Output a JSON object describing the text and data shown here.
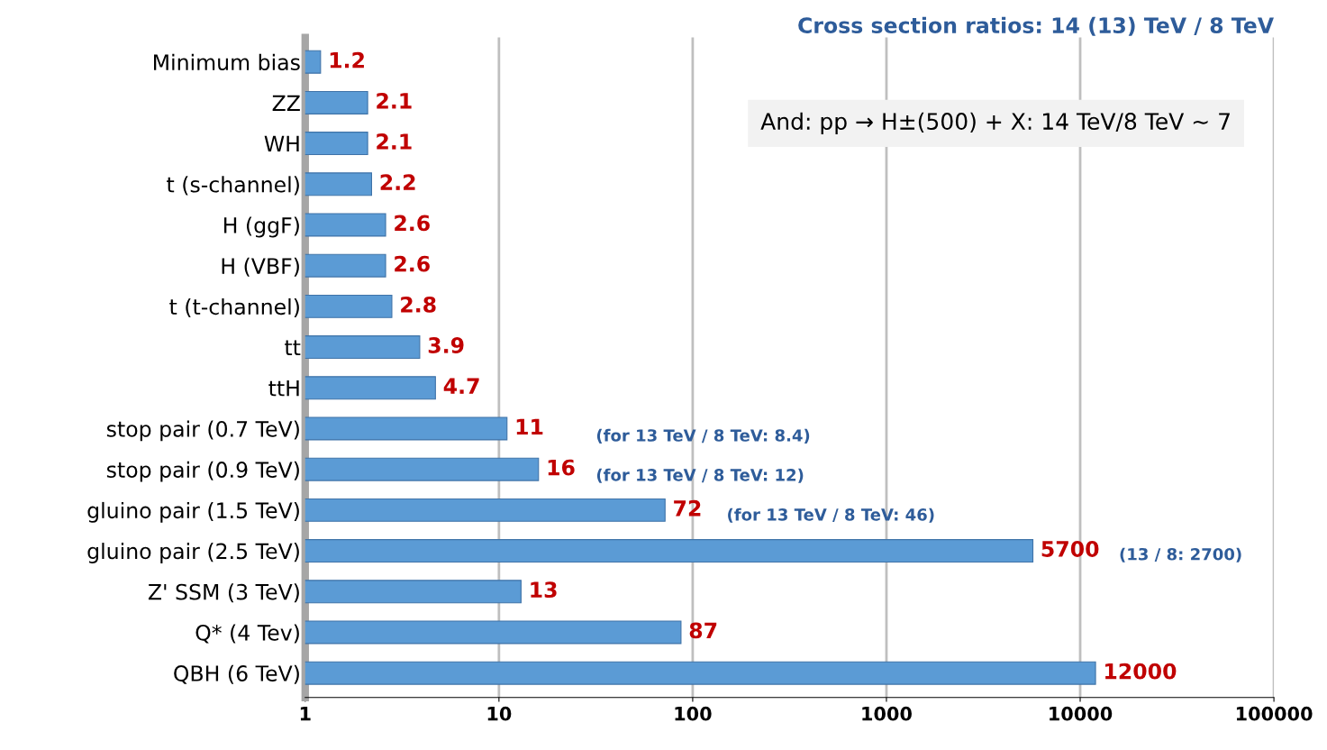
{
  "chart_data": {
    "type": "bar",
    "orientation": "horizontal",
    "title": "Cross section ratios: 14 (13) TeV / 8 TeV",
    "categories": [
      "Minimum bias",
      "ZZ",
      "WH",
      "t (s-channel)",
      "H (ggF)",
      "H (VBF)",
      "t (t-channel)",
      "tt",
      "ttH",
      "stop pair (0.7 TeV)",
      "stop pair (0.9 TeV)",
      "gluino pair (1.5 TeV)",
      "gluino pair (2.5 TeV)",
      "Z' SSM (3 TeV)",
      "Q* (4 Tev)",
      "QBH (6 TeV)"
    ],
    "values": [
      1.2,
      2.1,
      2.1,
      2.2,
      2.6,
      2.6,
      2.8,
      3.9,
      4.7,
      11,
      16,
      72,
      5700,
      13,
      87,
      12000
    ],
    "color": "#5b9bd5",
    "data_labels": true,
    "log": "x",
    "grid": "x",
    "xlim": [
      1,
      100000
    ],
    "xticks": [
      1,
      10,
      100,
      1000,
      10000,
      100000
    ],
    "annotations": [
      "(for 13 TeV / 8 TeV: 8.4)",
      "(for 13 TeV / 8 TeV: 12)",
      "(for 13 TeV / 8 TeV: 46)",
      "(13 / 8: 2700)",
      "And: pp → H±(500) + X: 14 TeV/8 TeV ~ 7"
    ]
  }
}
